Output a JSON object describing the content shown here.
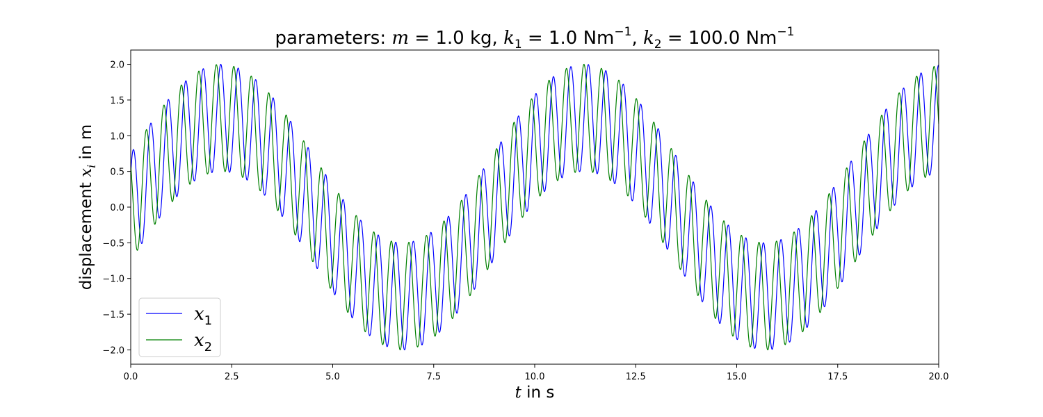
{
  "chart_data": {
    "type": "line",
    "title": {
      "prefix": "parameters: ",
      "m_var": "m",
      "m_value": " = 1.0 kg, ",
      "k_var": "k",
      "k1_sub": "1",
      "k1_value": " = 1.0 Nm",
      "k1_exp": "−1",
      "sep": ", ",
      "k2_sub": "2",
      "k2_value": " = 100.0 Nm",
      "k2_exp": "−1"
    },
    "xlabel": {
      "var": "t",
      "rest": " in s"
    },
    "ylabel": {
      "prefix": "displacement ",
      "var": "x",
      "sub": "i",
      "rest": " in m"
    },
    "xlim": [
      0,
      20
    ],
    "ylim": [
      -2.2,
      2.2
    ],
    "xticks": [
      0,
      2.5,
      5,
      7.5,
      10,
      12.5,
      15,
      17.5,
      20
    ],
    "xtick_labels": [
      "0.0",
      "2.5",
      "5.0",
      "7.5",
      "10.0",
      "12.5",
      "15.0",
      "17.5",
      "20.0"
    ],
    "yticks": [
      -2,
      -1.5,
      -1,
      -0.5,
      0,
      0.5,
      1,
      1.5,
      2
    ],
    "ytick_labels": [
      "−2.0",
      "−1.5",
      "−1.0",
      "−0.5",
      "0.0",
      "0.5",
      "1.0",
      "1.5",
      "2.0"
    ],
    "grid": false,
    "legend_position": "bottom-left",
    "series": [
      {
        "name": "x",
        "name_sub": "1",
        "color": "#0000ff",
        "slow_amplitude": 1.25,
        "slow_omega": 0.7,
        "slow_phase": -1.571,
        "fast_amplitude": 0.75,
        "fast_omega": 14.5,
        "fast_phase": -0.9
      },
      {
        "name": "x",
        "name_sub": "2",
        "color": "#008000",
        "slow_amplitude": 1.25,
        "slow_omega": 0.7,
        "slow_phase": -1.571,
        "fast_amplitude": 0.75,
        "fast_omega": 14.5,
        "fast_phase": 0.69
      }
    ]
  }
}
